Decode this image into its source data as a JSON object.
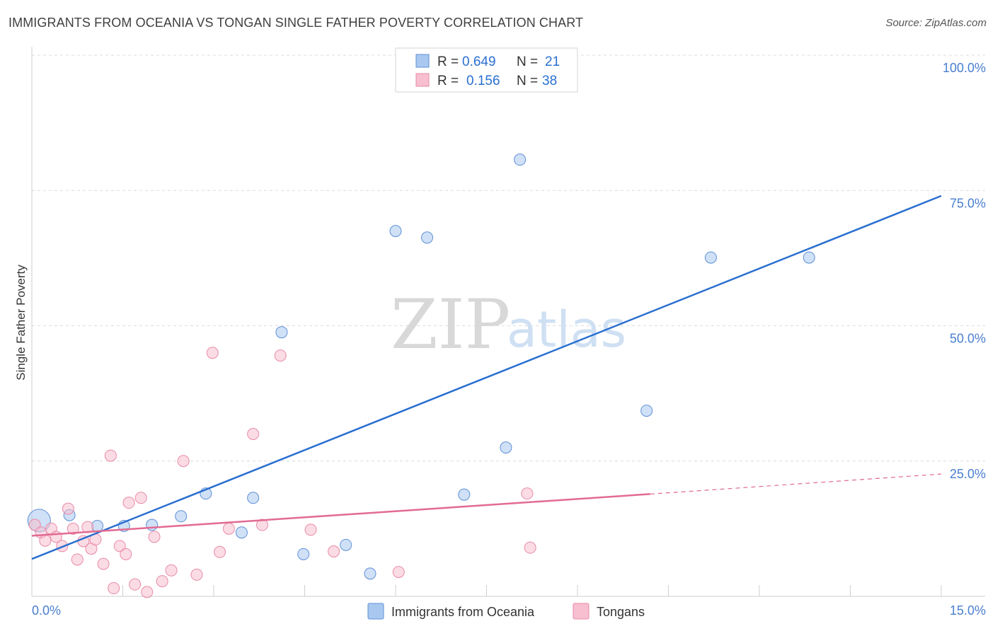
{
  "chart_data": {
    "type": "scatter",
    "title": "IMMIGRANTS FROM OCEANIA VS TONGAN SINGLE FATHER POVERTY CORRELATION CHART",
    "source": "Source: ZipAtlas.com",
    "xlabel": "",
    "ylabel": "Single Father Poverty",
    "xlim": [
      0,
      15
    ],
    "ylim": [
      0,
      100
    ],
    "x_tick_labels": [
      {
        "value": 0,
        "label": "0.0%"
      },
      {
        "value": 15,
        "label": "15.0%"
      }
    ],
    "y_tick_labels": [
      {
        "value": 25,
        "label": "25.0%"
      },
      {
        "value": 50,
        "label": "50.0%"
      },
      {
        "value": 75,
        "label": "75.0%"
      },
      {
        "value": 100,
        "label": "100.0%"
      }
    ],
    "watermark": {
      "zip": "ZIP",
      "atlas": "atlas"
    },
    "stats": [
      {
        "r_label": "R =",
        "r_value": "0.649",
        "n_label": "N =",
        "n_value": "21"
      },
      {
        "r_label": "R =",
        "r_value": "0.156",
        "n_label": "N =",
        "n_value": "38"
      }
    ],
    "series": [
      {
        "name": "Immigrants from Oceania",
        "color": "#a9c8f0",
        "stroke": "#5d8fd6",
        "line_color": "#2a6fd0",
        "trend": {
          "x": [
            0,
            15
          ],
          "y": [
            6.9,
            74.0
          ],
          "dashed_to": null
        },
        "points": [
          {
            "x": 0.12,
            "y": 14.0,
            "big": true
          },
          {
            "x": 0.62,
            "y": 15.0
          },
          {
            "x": 1.08,
            "y": 13.0
          },
          {
            "x": 1.52,
            "y": 13.0
          },
          {
            "x": 1.98,
            "y": 13.2
          },
          {
            "x": 2.46,
            "y": 14.8
          },
          {
            "x": 2.87,
            "y": 19.0
          },
          {
            "x": 3.46,
            "y": 11.8
          },
          {
            "x": 3.65,
            "y": 18.2
          },
          {
            "x": 4.12,
            "y": 48.8
          },
          {
            "x": 4.48,
            "y": 7.8
          },
          {
            "x": 5.18,
            "y": 9.5
          },
          {
            "x": 5.58,
            "y": 4.2
          },
          {
            "x": 6.0,
            "y": 67.5
          },
          {
            "x": 6.52,
            "y": 66.3
          },
          {
            "x": 7.13,
            "y": 18.8
          },
          {
            "x": 7.82,
            "y": 27.5
          },
          {
            "x": 8.05,
            "y": 80.7
          },
          {
            "x": 10.14,
            "y": 34.3
          },
          {
            "x": 11.2,
            "y": 62.6
          },
          {
            "x": 12.82,
            "y": 62.6
          }
        ]
      },
      {
        "name": "Tongans",
        "color": "#f7bfd0",
        "stroke": "#e88aa6",
        "line_color": "#e26a93",
        "trend": {
          "x": [
            0,
            10.2
          ],
          "y": [
            11.2,
            18.9
          ],
          "dashed_to": {
            "x": 15,
            "y": 22.6
          }
        },
        "points": [
          {
            "x": 0.05,
            "y": 13.2
          },
          {
            "x": 0.15,
            "y": 11.8
          },
          {
            "x": 0.22,
            "y": 10.3
          },
          {
            "x": 0.32,
            "y": 12.5
          },
          {
            "x": 0.4,
            "y": 11.0
          },
          {
            "x": 0.5,
            "y": 9.3
          },
          {
            "x": 0.6,
            "y": 16.2
          },
          {
            "x": 0.68,
            "y": 12.5
          },
          {
            "x": 0.75,
            "y": 6.8
          },
          {
            "x": 0.85,
            "y": 10.2
          },
          {
            "x": 0.92,
            "y": 12.8
          },
          {
            "x": 0.98,
            "y": 8.8
          },
          {
            "x": 1.05,
            "y": 10.5
          },
          {
            "x": 1.18,
            "y": 6.0
          },
          {
            "x": 1.3,
            "y": 26.0
          },
          {
            "x": 1.35,
            "y": 1.5
          },
          {
            "x": 1.45,
            "y": 9.3
          },
          {
            "x": 1.55,
            "y": 7.8
          },
          {
            "x": 1.6,
            "y": 17.3
          },
          {
            "x": 1.7,
            "y": 2.2
          },
          {
            "x": 1.8,
            "y": 18.2
          },
          {
            "x": 1.9,
            "y": 0.8
          },
          {
            "x": 2.02,
            "y": 11.0
          },
          {
            "x": 2.15,
            "y": 2.8
          },
          {
            "x": 2.3,
            "y": 4.8
          },
          {
            "x": 2.5,
            "y": 25.0
          },
          {
            "x": 2.72,
            "y": 4.0
          },
          {
            "x": 2.98,
            "y": 45.0
          },
          {
            "x": 3.1,
            "y": 8.2
          },
          {
            "x": 3.25,
            "y": 12.5
          },
          {
            "x": 3.65,
            "y": 30.0
          },
          {
            "x": 3.8,
            "y": 13.2
          },
          {
            "x": 4.1,
            "y": 44.5
          },
          {
            "x": 4.6,
            "y": 12.3
          },
          {
            "x": 4.98,
            "y": 8.3
          },
          {
            "x": 6.05,
            "y": 4.5
          },
          {
            "x": 8.17,
            "y": 19.0
          },
          {
            "x": 8.22,
            "y": 9.0
          }
        ]
      }
    ]
  }
}
